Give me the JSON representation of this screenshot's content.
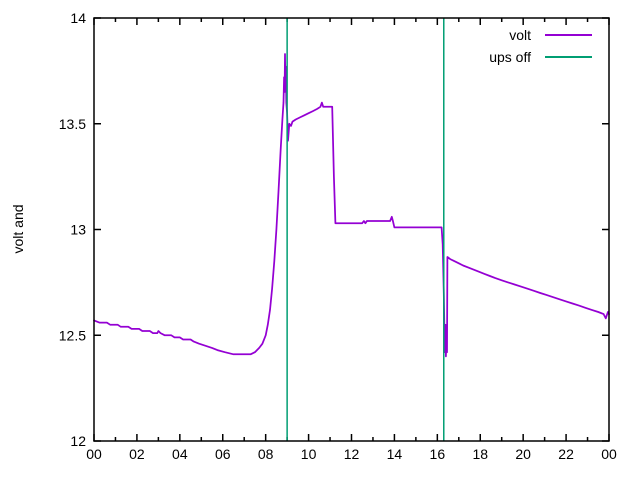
{
  "chart_data": {
    "type": "line",
    "title": "",
    "xlabel": "",
    "ylabel": "volt and",
    "xlim": [
      0,
      24
    ],
    "ylim": [
      12,
      14
    ],
    "grid": false,
    "legend_position": "top-right",
    "x_ticks_major": [
      0,
      2,
      4,
      6,
      8,
      10,
      12,
      14,
      16,
      18,
      20,
      22,
      24
    ],
    "x_tick_labels": [
      "00",
      "02",
      "04",
      "06",
      "08",
      "10",
      "12",
      "14",
      "16",
      "18",
      "20",
      "22",
      "00"
    ],
    "x_ticks_minor": [
      1,
      3,
      5,
      7,
      9,
      11,
      13,
      15,
      17,
      19,
      21,
      23
    ],
    "y_ticks": [
      12,
      12.5,
      13,
      13.5,
      14
    ],
    "y_tick_labels": [
      "12",
      "12.5",
      "13",
      "13.5",
      "14"
    ],
    "series": [
      {
        "name": "volt",
        "type": "line",
        "color": "#9400d3",
        "points": [
          [
            0.0,
            12.57
          ],
          [
            0.25,
            12.56
          ],
          [
            0.6,
            12.56
          ],
          [
            0.75,
            12.55
          ],
          [
            1.1,
            12.55
          ],
          [
            1.25,
            12.54
          ],
          [
            1.6,
            12.54
          ],
          [
            1.75,
            12.53
          ],
          [
            2.1,
            12.53
          ],
          [
            2.25,
            12.52
          ],
          [
            2.6,
            12.52
          ],
          [
            2.75,
            12.51
          ],
          [
            2.95,
            12.51
          ],
          [
            3.0,
            12.52
          ],
          [
            3.1,
            12.51
          ],
          [
            3.3,
            12.5
          ],
          [
            3.6,
            12.5
          ],
          [
            3.75,
            12.49
          ],
          [
            4.0,
            12.49
          ],
          [
            4.15,
            12.48
          ],
          [
            4.5,
            12.48
          ],
          [
            4.65,
            12.47
          ],
          [
            4.9,
            12.46
          ],
          [
            5.2,
            12.45
          ],
          [
            5.5,
            12.44
          ],
          [
            5.75,
            12.43
          ],
          [
            6.1,
            12.42
          ],
          [
            6.5,
            12.41
          ],
          [
            7.0,
            12.41
          ],
          [
            7.3,
            12.41
          ],
          [
            7.5,
            12.42
          ],
          [
            7.7,
            12.44
          ],
          [
            7.85,
            12.46
          ],
          [
            8.0,
            12.5
          ],
          [
            8.1,
            12.55
          ],
          [
            8.2,
            12.62
          ],
          [
            8.3,
            12.72
          ],
          [
            8.4,
            12.85
          ],
          [
            8.5,
            13.0
          ],
          [
            8.6,
            13.18
          ],
          [
            8.7,
            13.38
          ],
          [
            8.78,
            13.52
          ],
          [
            8.83,
            13.6
          ],
          [
            8.86,
            13.72
          ],
          [
            8.88,
            13.65
          ],
          [
            8.9,
            13.83
          ],
          [
            8.92,
            13.68
          ],
          [
            8.94,
            13.77
          ],
          [
            8.96,
            13.6
          ],
          [
            9.0,
            13.55
          ],
          [
            9.04,
            13.42
          ],
          [
            9.1,
            13.5
          ],
          [
            9.18,
            13.49
          ],
          [
            9.25,
            13.51
          ],
          [
            9.4,
            13.52
          ],
          [
            9.6,
            13.53
          ],
          [
            9.8,
            13.54
          ],
          [
            10.0,
            13.55
          ],
          [
            10.2,
            13.56
          ],
          [
            10.4,
            13.57
          ],
          [
            10.55,
            13.58
          ],
          [
            10.62,
            13.6
          ],
          [
            10.68,
            13.58
          ],
          [
            11.1,
            13.58
          ],
          [
            11.18,
            13.25
          ],
          [
            11.25,
            13.03
          ],
          [
            12.5,
            13.03
          ],
          [
            12.58,
            13.04
          ],
          [
            12.65,
            13.03
          ],
          [
            12.72,
            13.04
          ],
          [
            13.8,
            13.04
          ],
          [
            13.88,
            13.06
          ],
          [
            13.93,
            13.04
          ],
          [
            14.0,
            13.01
          ],
          [
            16.2,
            13.01
          ],
          [
            16.25,
            12.93
          ],
          [
            16.3,
            12.7
          ],
          [
            16.33,
            12.52
          ],
          [
            16.36,
            12.42
          ],
          [
            16.38,
            12.55
          ],
          [
            16.4,
            12.4
          ],
          [
            16.43,
            12.53
          ],
          [
            16.45,
            12.42
          ],
          [
            16.47,
            12.87
          ],
          [
            16.6,
            12.86
          ],
          [
            16.8,
            12.85
          ],
          [
            17.0,
            12.84
          ],
          [
            17.2,
            12.83
          ],
          [
            17.45,
            12.82
          ],
          [
            17.7,
            12.81
          ],
          [
            17.95,
            12.8
          ],
          [
            18.2,
            12.79
          ],
          [
            18.45,
            12.78
          ],
          [
            18.7,
            12.77
          ],
          [
            19.0,
            12.76
          ],
          [
            19.3,
            12.75
          ],
          [
            19.6,
            12.74
          ],
          [
            19.9,
            12.73
          ],
          [
            20.2,
            12.72
          ],
          [
            20.5,
            12.71
          ],
          [
            20.8,
            12.7
          ],
          [
            21.1,
            12.69
          ],
          [
            21.4,
            12.68
          ],
          [
            21.7,
            12.67
          ],
          [
            22.0,
            12.66
          ],
          [
            22.3,
            12.65
          ],
          [
            22.6,
            12.64
          ],
          [
            22.9,
            12.63
          ],
          [
            23.2,
            12.62
          ],
          [
            23.5,
            12.61
          ],
          [
            23.75,
            12.6
          ],
          [
            23.85,
            12.58
          ],
          [
            23.95,
            12.61
          ],
          [
            24.0,
            12.6
          ]
        ]
      },
      {
        "name": "ups off",
        "type": "vlines",
        "color": "#009e73",
        "x": [
          9.0,
          16.3
        ]
      }
    ]
  },
  "colors": {
    "background": "#ffffff",
    "axis": "#000000",
    "volt_line": "#9400d3",
    "ups_off_line": "#009e73"
  }
}
